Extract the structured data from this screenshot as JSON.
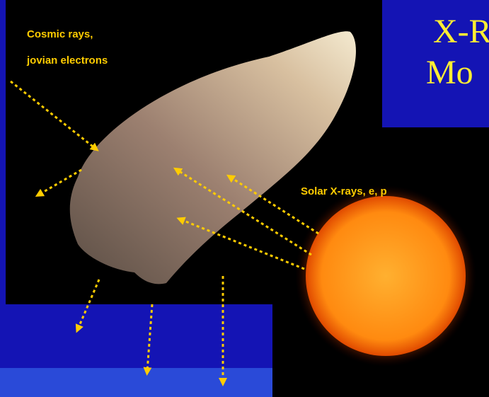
{
  "title": {
    "lines": [
      "X-R",
      "Mo"
    ]
  },
  "labels": {
    "cosmic": [
      "Cosmic rays,",
      "jovian electrons"
    ],
    "solar": "Solar X-rays, e, p"
  }
}
